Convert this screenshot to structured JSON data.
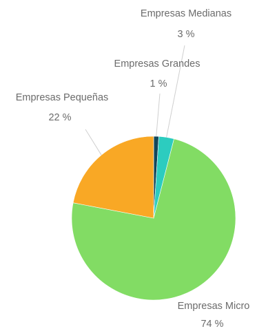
{
  "chart_data": {
    "type": "pie",
    "slices": [
      {
        "name": "Empresas Grandes",
        "value": 1,
        "label": "1 %",
        "color": "#12475a"
      },
      {
        "name": "Empresas Medianas",
        "value": 3,
        "label": "3 %",
        "color": "#2cccbf"
      },
      {
        "name": "Empresas Micro",
        "value": 74,
        "label": "74 %",
        "color": "#82dc64"
      },
      {
        "name": "Empresas Pequeñas",
        "value": 22,
        "label": "22 %",
        "color": "#f9a825"
      }
    ],
    "start": "12 o'clock",
    "direction": "clockwise"
  }
}
